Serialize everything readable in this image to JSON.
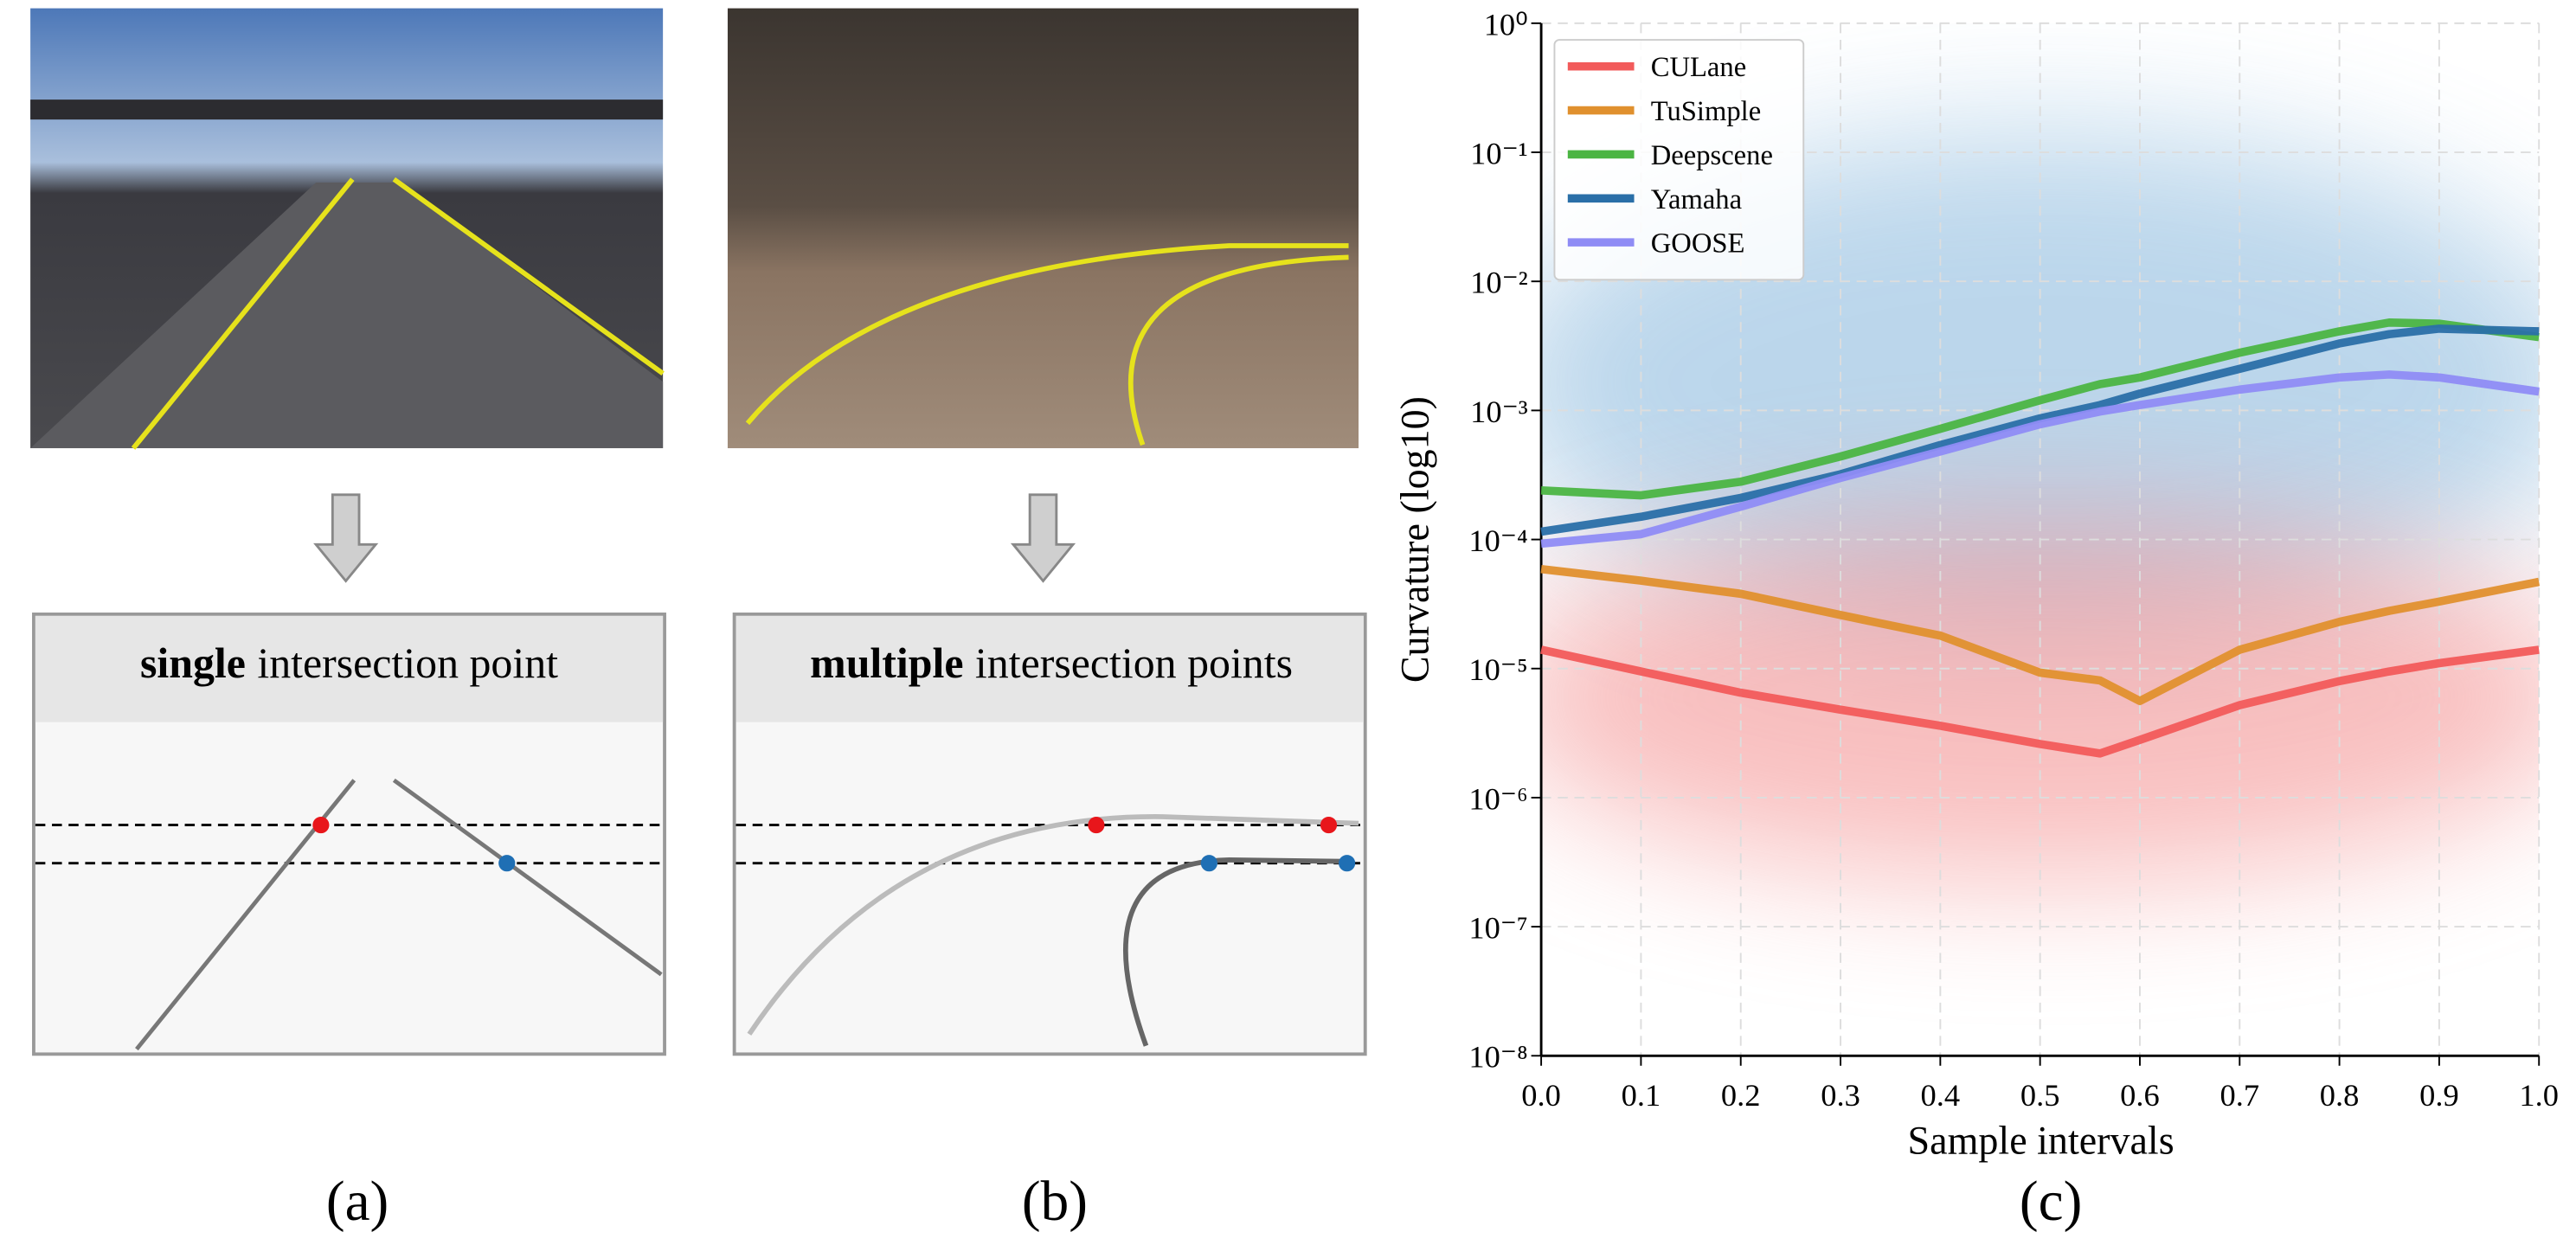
{
  "panels": [
    {
      "title_bold": "single",
      "title_rest": "intersection point",
      "caption": "(a)"
    },
    {
      "title_bold": "multiple",
      "title_rest": "intersection points",
      "caption": "(b)"
    }
  ],
  "chart_data": {
    "type": "line",
    "caption": "(c)",
    "x_label": "Sample intervals",
    "y_label": "Curvature (log10)",
    "yscale": "log",
    "grid": true,
    "legend": "upper left",
    "xlim": [
      0,
      1
    ],
    "ylim": [
      1e-08,
      1
    ],
    "xticks": [
      {
        "value": 0,
        "label": "0.0"
      },
      0.1,
      0.2,
      0.3,
      0.4,
      0.5,
      0.6,
      0.7,
      0.8,
      0.9,
      {
        "value": 1,
        "label": "1.0"
      }
    ],
    "yticks": [
      {
        "value": 1e-08,
        "label": "10⁻⁸"
      },
      {
        "value": 1e-07,
        "label": "10⁻⁷"
      },
      {
        "value": 1e-06,
        "label": "10⁻⁶"
      },
      {
        "value": 1e-05,
        "label": "10⁻⁵"
      },
      {
        "value": 0.0001,
        "label": "10⁻⁴"
      },
      {
        "value": 0.001,
        "label": "10⁻³"
      },
      {
        "value": 0.01,
        "label": "10⁻²"
      },
      {
        "value": 0.1,
        "label": "10⁻¹"
      },
      {
        "value": 1,
        "label": "10⁰"
      }
    ],
    "x": [
      0,
      0.1,
      0.2,
      0.3,
      0.4,
      0.5,
      0.56,
      0.6,
      0.7,
      0.8,
      0.85,
      0.9,
      1.0
    ],
    "series": [
      {
        "name": "CULane",
        "color": "#f25b5b",
        "values": [
          1.4e-05,
          9.5e-06,
          6.5e-06,
          4.8e-06,
          3.6e-06,
          2.6e-06,
          2.2e-06,
          2.8e-06,
          5.2e-06,
          8e-06,
          9.5e-06,
          1.1e-05,
          1.4e-05
        ]
      },
      {
        "name": "TuSimple",
        "color": "#e0902e",
        "values": [
          5.9e-05,
          4.8e-05,
          3.8e-05,
          2.6e-05,
          1.8e-05,
          9.3e-06,
          8.1e-06,
          5.6e-06,
          1.4e-05,
          2.3e-05,
          2.8e-05,
          3.3e-05,
          4.7e-05
        ]
      },
      {
        "name": "Deepscene",
        "color": "#4bb543",
        "values": [
          0.00024,
          0.00022,
          0.00028,
          0.00044,
          0.00072,
          0.0012,
          0.0016,
          0.0018,
          0.0028,
          0.0041,
          0.0048,
          0.0047,
          0.0037
        ]
      },
      {
        "name": "Yamaha",
        "color": "#2a6fa8",
        "values": [
          0.000115,
          0.00015,
          0.00021,
          0.00032,
          0.00054,
          0.00087,
          0.0011,
          0.00135,
          0.0021,
          0.0033,
          0.0039,
          0.0043,
          0.0041
        ]
      },
      {
        "name": "GOOSE",
        "color": "#8f8cf5",
        "values": [
          9.3e-05,
          0.00011,
          0.00018,
          0.0003,
          0.00048,
          0.00078,
          0.00098,
          0.0011,
          0.00145,
          0.0018,
          0.0019,
          0.0018,
          0.0014
        ]
      }
    ]
  }
}
